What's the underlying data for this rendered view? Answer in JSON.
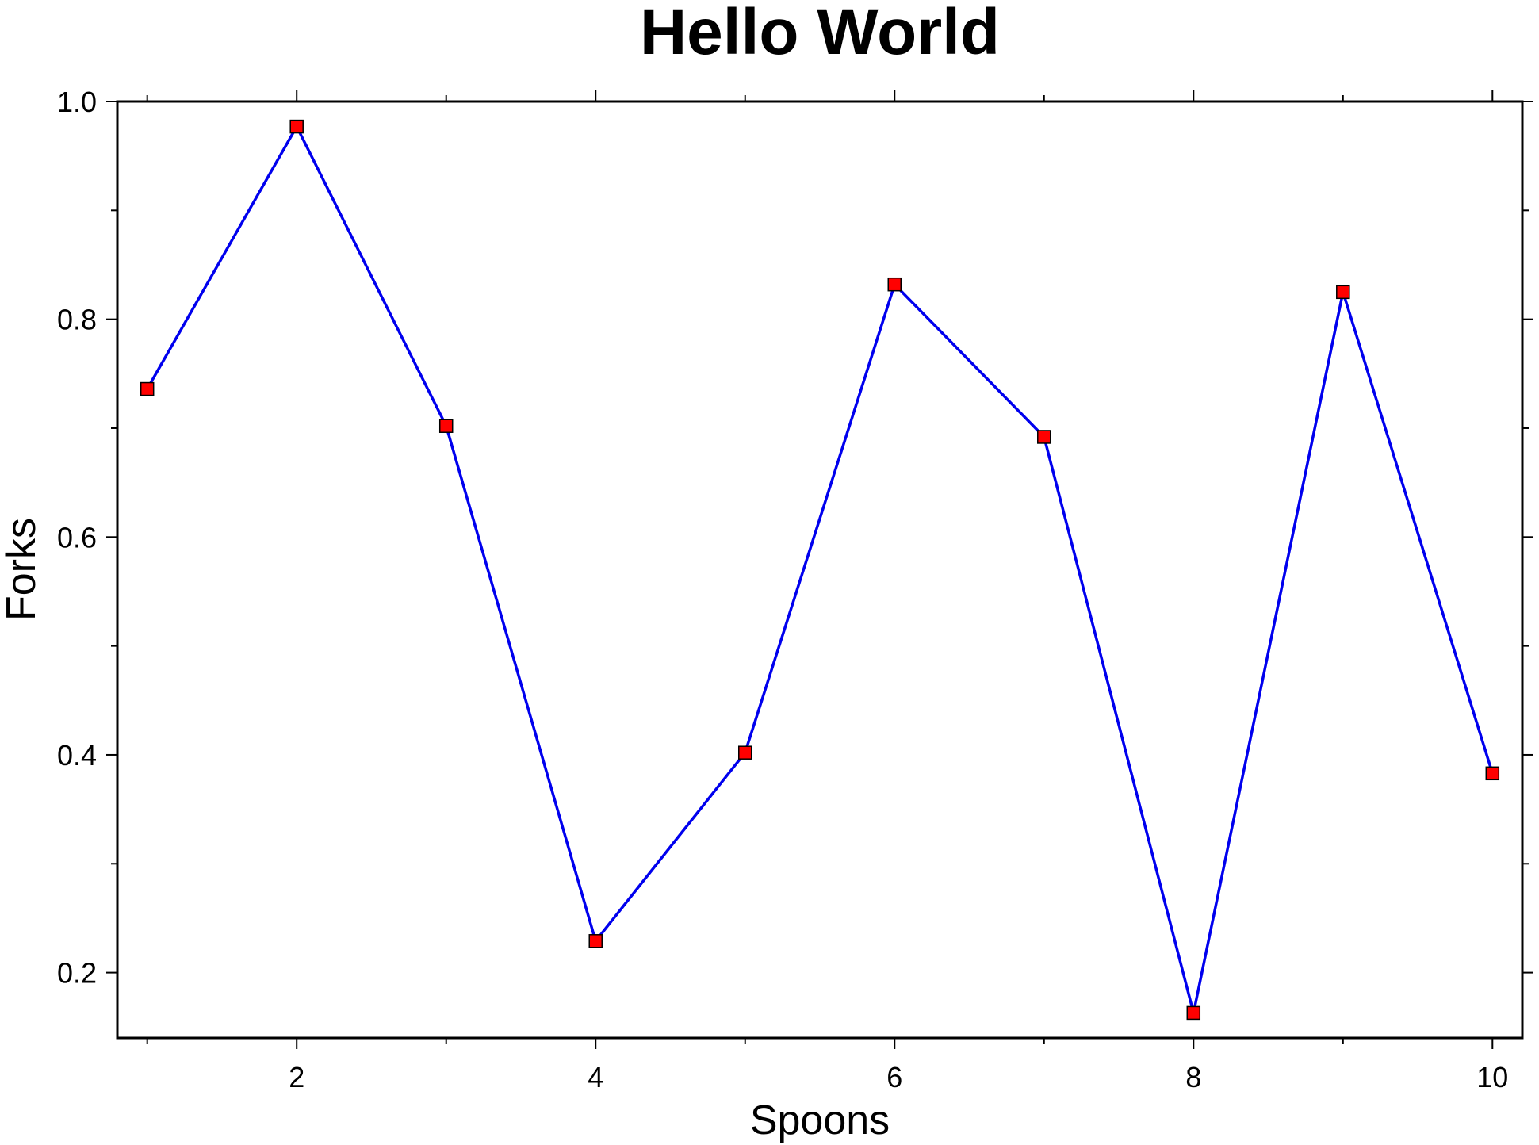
{
  "chart_data": {
    "type": "line",
    "title": "Hello World",
    "xlabel": "Spoons",
    "ylabel": "Forks",
    "xlim": [
      0.8,
      10.2
    ],
    "ylim": [
      0.14,
      1.0
    ],
    "x_ticks": [
      2,
      4,
      6,
      8,
      10
    ],
    "x_tick_labels": [
      "2",
      "4",
      "6",
      "8",
      "10"
    ],
    "x_minor_ticks": [
      1,
      3,
      5,
      7,
      9
    ],
    "y_ticks": [
      0.2,
      0.4,
      0.6,
      0.8,
      1.0
    ],
    "y_tick_labels": [
      "0.2",
      "0.4",
      "0.6",
      "0.8",
      "1.0"
    ],
    "y_minor_ticks": [
      0.3,
      0.5,
      0.7,
      0.9
    ],
    "grid": false,
    "series": [
      {
        "x": [
          1,
          2,
          3,
          4,
          5,
          6,
          7,
          8,
          9,
          10
        ],
        "y": [
          0.736,
          0.977,
          0.702,
          0.229,
          0.402,
          0.832,
          0.692,
          0.163,
          0.825,
          0.383
        ],
        "line_color": "#0000ee",
        "marker": "square",
        "marker_color": "#ff0000"
      }
    ]
  }
}
